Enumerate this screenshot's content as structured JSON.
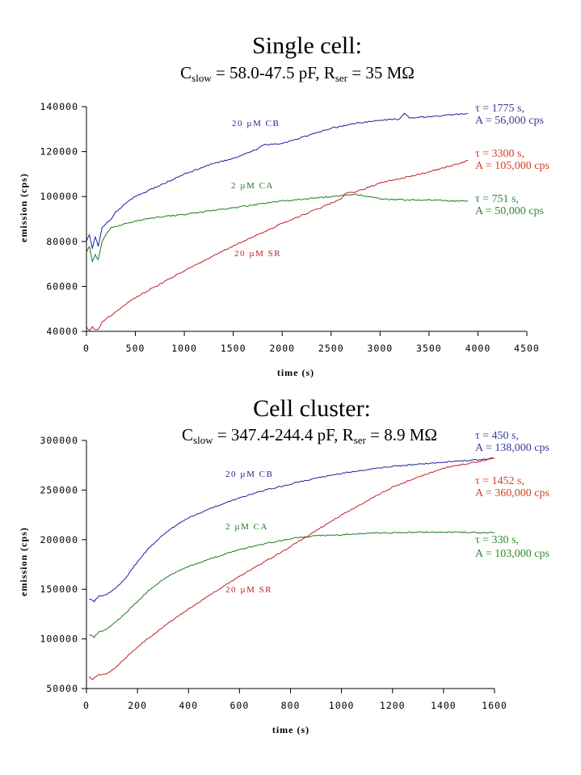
{
  "chart_data": [
    {
      "type": "line",
      "title": "Single cell:",
      "subtitle": {
        "c_label": "C",
        "c_sub": "slow",
        "c_value": " = 58.0-47.5 pF, R",
        "r_sub": "ser",
        "r_value": " = 35 MΩ"
      },
      "xlabel": "time (s)",
      "ylabel": "emission (cps)",
      "xlim": [
        0,
        4500
      ],
      "ylim": [
        40000,
        140000
      ],
      "xticks": [
        0,
        500,
        1000,
        1500,
        2000,
        2500,
        3000,
        3500,
        4000,
        4500
      ],
      "yticks": [
        40000,
        60000,
        80000,
        100000,
        120000,
        140000
      ],
      "grid": false,
      "series": [
        {
          "name": "20 µM CB",
          "color": "#1f1f9c",
          "x": [
            0,
            30,
            60,
            90,
            120,
            160,
            200,
            250,
            300,
            400,
            500,
            750,
            1000,
            1250,
            1500,
            1750,
            1800,
            2000,
            2250,
            2500,
            2750,
            3000,
            3200,
            3250,
            3300,
            3500,
            3750,
            3900
          ],
          "y": [
            80000,
            83000,
            77000,
            82000,
            78000,
            86000,
            88000,
            90000,
            93000,
            97000,
            100000,
            105000,
            110000,
            114000,
            117000,
            121000,
            123000,
            123500,
            127000,
            130500,
            132500,
            134000,
            134500,
            137000,
            135000,
            135500,
            136500,
            137000
          ],
          "annotation": {
            "tau": "τ = 1775 s,",
            "amp": "A = 56,000 cps"
          }
        },
        {
          "name": "2 µM CA",
          "color": "#1f7a1f",
          "x": [
            0,
            30,
            60,
            90,
            120,
            160,
            200,
            250,
            300,
            400,
            500,
            750,
            1000,
            1250,
            1500,
            1750,
            2000,
            2250,
            2500,
            2750,
            3000,
            3250,
            3500,
            3750,
            3900
          ],
          "y": [
            75000,
            78000,
            71000,
            74000,
            72000,
            80000,
            83000,
            86000,
            86500,
            88000,
            89000,
            91000,
            92000,
            93500,
            95000,
            96500,
            98000,
            99000,
            100000,
            101000,
            99000,
            98500,
            98500,
            98000,
            98000
          ],
          "annotation": {
            "tau": "τ = 751 s,",
            "amp": "A = 50,000 cps"
          }
        },
        {
          "name": "20 µM SR",
          "color": "#c0202a",
          "x": [
            0,
            30,
            60,
            90,
            120,
            160,
            200,
            250,
            300,
            400,
            500,
            750,
            1000,
            1250,
            1500,
            1750,
            2000,
            2250,
            2500,
            2600,
            2650,
            2750,
            3000,
            3250,
            3500,
            3750,
            3900
          ],
          "y": [
            42000,
            40500,
            42000,
            40500,
            41000,
            44000,
            45500,
            47000,
            48500,
            52000,
            55000,
            61000,
            67000,
            72500,
            78000,
            83000,
            88000,
            92500,
            97000,
            99000,
            101500,
            102000,
            106000,
            108500,
            111000,
            114000,
            116000
          ],
          "annotation": {
            "tau": "τ = 3300 s,",
            "amp": "A = 105,000 cps"
          }
        }
      ]
    },
    {
      "type": "line",
      "title": "Cell cluster:",
      "subtitle": {
        "c_label": "C",
        "c_sub": "slow",
        "c_value": " = 347.4-244.4 pF, R",
        "r_sub": "ser",
        "r_value": " = 8.9 MΩ"
      },
      "xlabel": "time (s)",
      "ylabel": "emission (cps)",
      "xlim": [
        0,
        1600
      ],
      "ylim": [
        50000,
        300000
      ],
      "xticks": [
        0,
        200,
        400,
        600,
        800,
        1000,
        1200,
        1400,
        1600
      ],
      "yticks": [
        50000,
        100000,
        150000,
        200000,
        250000,
        300000
      ],
      "grid": false,
      "series": [
        {
          "name": "20 µM CB",
          "color": "#1f1f9c",
          "x": [
            10,
            30,
            50,
            80,
            110,
            150,
            200,
            250,
            300,
            350,
            400,
            500,
            600,
            700,
            800,
            900,
            1000,
            1100,
            1200,
            1300,
            1400,
            1500,
            1600
          ],
          "y": [
            140000,
            138000,
            143000,
            145000,
            150000,
            160000,
            178000,
            193000,
            205000,
            214000,
            222000,
            233000,
            242000,
            250000,
            256000,
            262000,
            267000,
            270500,
            274000,
            276000,
            278000,
            280000,
            282000
          ],
          "annotation": {
            "tau": "τ = 450 s,",
            "amp": "A = 138,000 cps"
          }
        },
        {
          "name": "2 µM CA",
          "color": "#1f7a1f",
          "x": [
            10,
            30,
            50,
            80,
            110,
            150,
            200,
            250,
            300,
            350,
            400,
            500,
            600,
            700,
            800,
            900,
            1000,
            1100,
            1200,
            1300,
            1400,
            1500,
            1600
          ],
          "y": [
            104000,
            102000,
            107000,
            110000,
            116000,
            125000,
            138000,
            150000,
            160000,
            167000,
            173000,
            182000,
            190000,
            196000,
            201000,
            204000,
            205000,
            206500,
            207000,
            207500,
            207500,
            207500,
            207000
          ],
          "annotation": {
            "tau": "τ = 330 s,",
            "amp": "A = 103,000 cps"
          }
        },
        {
          "name": "20 µM SR",
          "color": "#c0202a",
          "x": [
            10,
            20,
            50,
            80,
            110,
            150,
            200,
            250,
            300,
            350,
            400,
            500,
            600,
            700,
            800,
            900,
            1000,
            1100,
            1200,
            1300,
            1400,
            1500,
            1600
          ],
          "y": [
            62000,
            59000,
            64000,
            65000,
            70000,
            80000,
            92000,
            102000,
            112000,
            121000,
            130000,
            147000,
            163000,
            178000,
            193000,
            209000,
            225000,
            239000,
            253000,
            263000,
            272000,
            277000,
            282000
          ],
          "annotation": {
            "tau": "τ = 1452 s,",
            "amp": "A = 360,000 cps"
          }
        }
      ]
    }
  ]
}
